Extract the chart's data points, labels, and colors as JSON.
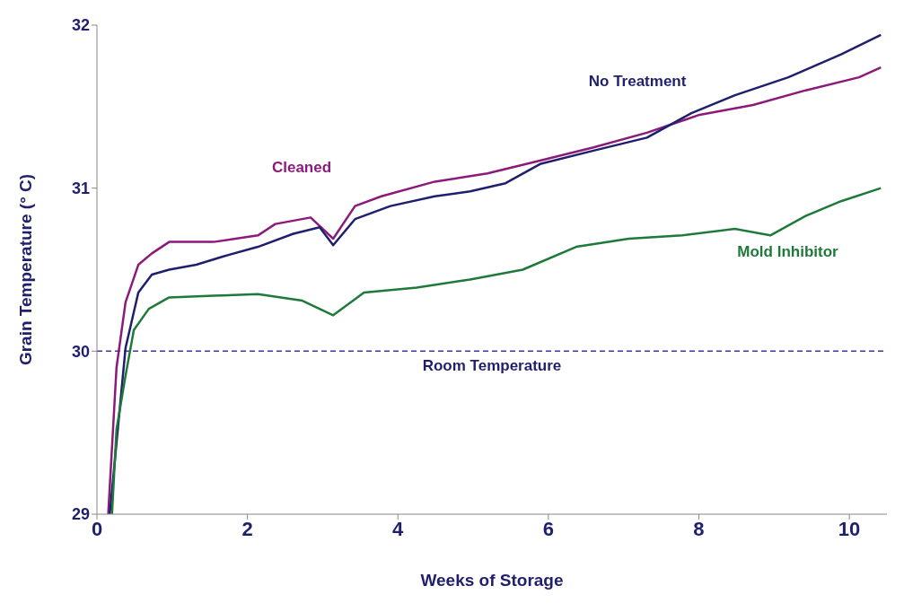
{
  "chart_data": {
    "type": "line",
    "xlabel": "Weeks of Storage",
    "ylabel": "Grain Temperature (° C)",
    "xlim": [
      0,
      10.5
    ],
    "xticks": [
      0,
      2,
      4,
      6,
      8,
      10
    ],
    "ylim": [
      29,
      32
    ],
    "yticks": [
      29,
      30,
      31,
      32
    ],
    "grid": false,
    "legend": false,
    "marker": "none",
    "line_style": "solid",
    "ref_lines": [
      {
        "axis": "y",
        "value": 30,
        "label": "Room Temperature",
        "color": "#3a3a9a",
        "line_style": "dashed"
      }
    ],
    "series": [
      {
        "name": "Cleaned",
        "color": "#8b1a7a",
        "x": [
          0.15,
          0.26,
          0.38,
          0.55,
          0.73,
          0.96,
          1.55,
          2.14,
          2.37,
          2.84,
          3.14,
          3.43,
          3.78,
          4.49,
          5.19,
          5.9,
          6.6,
          7.31,
          8.01,
          8.72,
          9.42,
          10.13,
          10.42
        ],
        "values": [
          29,
          29.9,
          30.3,
          30.53,
          30.6,
          30.67,
          30.67,
          30.71,
          30.78,
          30.82,
          30.69,
          30.89,
          30.95,
          31.04,
          31.09,
          31.17,
          31.25,
          31.34,
          31.45,
          31.51,
          31.6,
          31.68,
          31.74
        ]
      },
      {
        "name": "No Treatment",
        "color": "#1f1f6e",
        "x": [
          0.17,
          0.38,
          0.55,
          0.73,
          0.96,
          1.32,
          1.67,
          2.14,
          2.61,
          2.96,
          3.14,
          3.43,
          3.9,
          4.49,
          4.96,
          5.43,
          5.9,
          6.6,
          7.31,
          7.9,
          8.48,
          9.19,
          9.89,
          10.42
        ],
        "values": [
          29,
          30.02,
          30.36,
          30.47,
          30.5,
          30.53,
          30.58,
          30.64,
          30.72,
          30.76,
          30.65,
          30.81,
          30.89,
          30.95,
          30.98,
          31.03,
          31.15,
          31.23,
          31.31,
          31.46,
          31.57,
          31.68,
          31.82,
          31.94
        ]
      },
      {
        "name": "Mold Inhibitor",
        "color": "#1e7a3a",
        "x": [
          0.2,
          0.26,
          0.38,
          0.49,
          0.69,
          0.96,
          1.55,
          2.14,
          2.73,
          3.14,
          3.55,
          4.25,
          4.96,
          5.66,
          6.37,
          7.07,
          7.78,
          8.48,
          8.95,
          9.42,
          9.89,
          10.42
        ],
        "values": [
          29,
          29.52,
          29.85,
          30.13,
          30.26,
          30.33,
          30.34,
          30.35,
          30.31,
          30.22,
          30.36,
          30.39,
          30.44,
          30.5,
          30.64,
          30.69,
          30.71,
          30.75,
          30.71,
          30.83,
          30.92,
          31.0
        ]
      }
    ]
  }
}
